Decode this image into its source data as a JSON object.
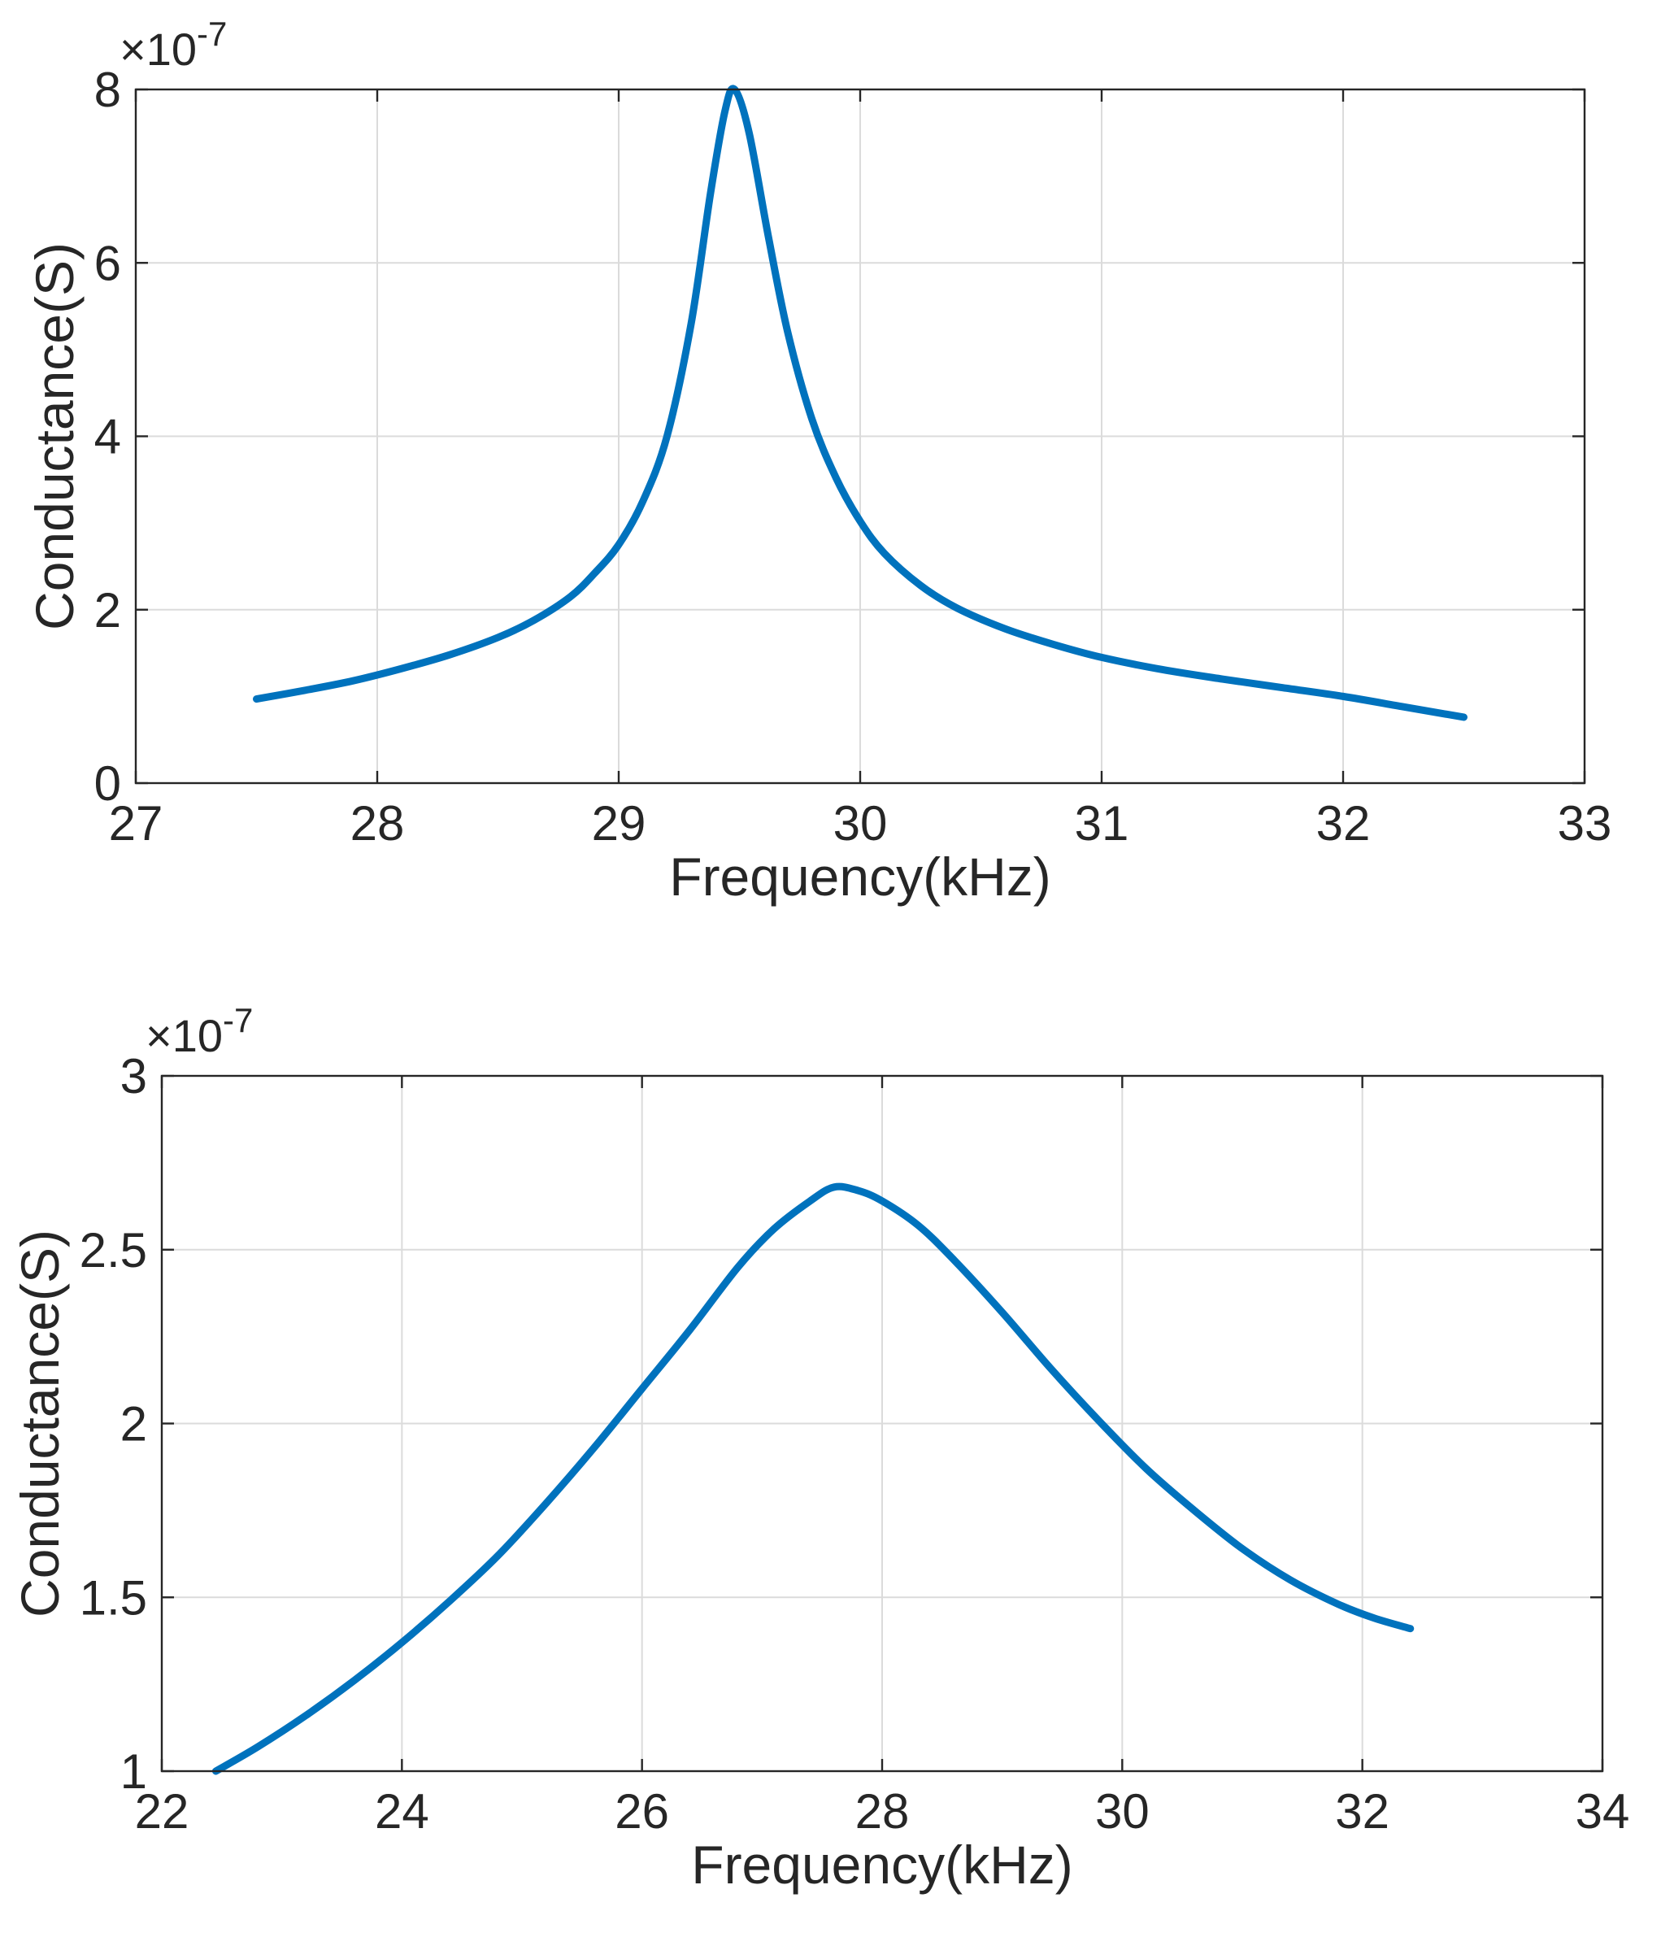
{
  "page": {
    "background": "#ffffff"
  },
  "chart_data": [
    {
      "type": "line",
      "title": "",
      "xlabel": "Frequency(kHz)",
      "ylabel": "Conductance(S)",
      "exponent": {
        "base": "×10",
        "exp": "-7"
      },
      "y_scale": "1e-7",
      "xlim": [
        27,
        33
      ],
      "ylim": [
        0,
        8
      ],
      "xticks": [
        27,
        28,
        29,
        30,
        31,
        32,
        33
      ],
      "xtick_labels": [
        "27",
        "28",
        "29",
        "30",
        "31",
        "32",
        "33"
      ],
      "yticks": [
        0,
        2,
        4,
        6,
        8
      ],
      "ytick_labels": [
        "0",
        "2",
        "4",
        "6",
        "8"
      ],
      "grid": true,
      "legend": "none",
      "line_color": "#0072BD",
      "series": [
        {
          "name": "conductance",
          "x": [
            27.5,
            27.7,
            27.9,
            28.1,
            28.3,
            28.5,
            28.65,
            28.8,
            28.9,
            29.0,
            29.1,
            29.2,
            29.3,
            29.38,
            29.44,
            29.48,
            29.54,
            29.62,
            29.7,
            29.8,
            29.9,
            30.0,
            30.1,
            30.25,
            30.4,
            30.6,
            30.8,
            31.0,
            31.25,
            31.5,
            31.75,
            32.0,
            32.25,
            32.5
          ],
          "y": [
            0.97,
            1.07,
            1.18,
            1.32,
            1.48,
            1.68,
            1.88,
            2.15,
            2.42,
            2.75,
            3.25,
            4.0,
            5.3,
            6.8,
            7.75,
            8.0,
            7.5,
            6.3,
            5.2,
            4.2,
            3.52,
            3.02,
            2.65,
            2.28,
            2.02,
            1.78,
            1.6,
            1.45,
            1.31,
            1.2,
            1.1,
            1.0,
            0.88,
            0.76
          ]
        }
      ]
    },
    {
      "type": "line",
      "title": "",
      "xlabel": "Frequency(kHz)",
      "ylabel": "Conductance(S)",
      "exponent": {
        "base": "×10",
        "exp": "-7"
      },
      "y_scale": "1e-7",
      "xlim": [
        22,
        34
      ],
      "ylim": [
        1,
        3
      ],
      "xticks": [
        22,
        24,
        26,
        28,
        30,
        32,
        34
      ],
      "xtick_labels": [
        "22",
        "24",
        "26",
        "28",
        "30",
        "32",
        "34"
      ],
      "yticks": [
        1,
        1.5,
        2,
        2.5,
        3
      ],
      "ytick_labels": [
        "1",
        "1.5",
        "2",
        "2.5",
        "3"
      ],
      "grid": true,
      "legend": "none",
      "line_color": "#0072BD",
      "series": [
        {
          "name": "conductance",
          "x": [
            22.45,
            22.8,
            23.2,
            23.6,
            24.0,
            24.4,
            24.8,
            25.2,
            25.6,
            26.0,
            26.4,
            26.8,
            27.1,
            27.4,
            27.6,
            27.8,
            28.0,
            28.3,
            28.6,
            29.0,
            29.4,
            29.8,
            30.2,
            30.6,
            31.0,
            31.4,
            31.8,
            32.1,
            32.4
          ],
          "y": [
            1.0,
            1.07,
            1.16,
            1.26,
            1.37,
            1.49,
            1.62,
            1.77,
            1.93,
            2.1,
            2.27,
            2.45,
            2.56,
            2.64,
            2.68,
            2.67,
            2.64,
            2.57,
            2.47,
            2.32,
            2.16,
            2.01,
            1.87,
            1.75,
            1.64,
            1.55,
            1.48,
            1.44,
            1.41
          ]
        }
      ]
    }
  ]
}
